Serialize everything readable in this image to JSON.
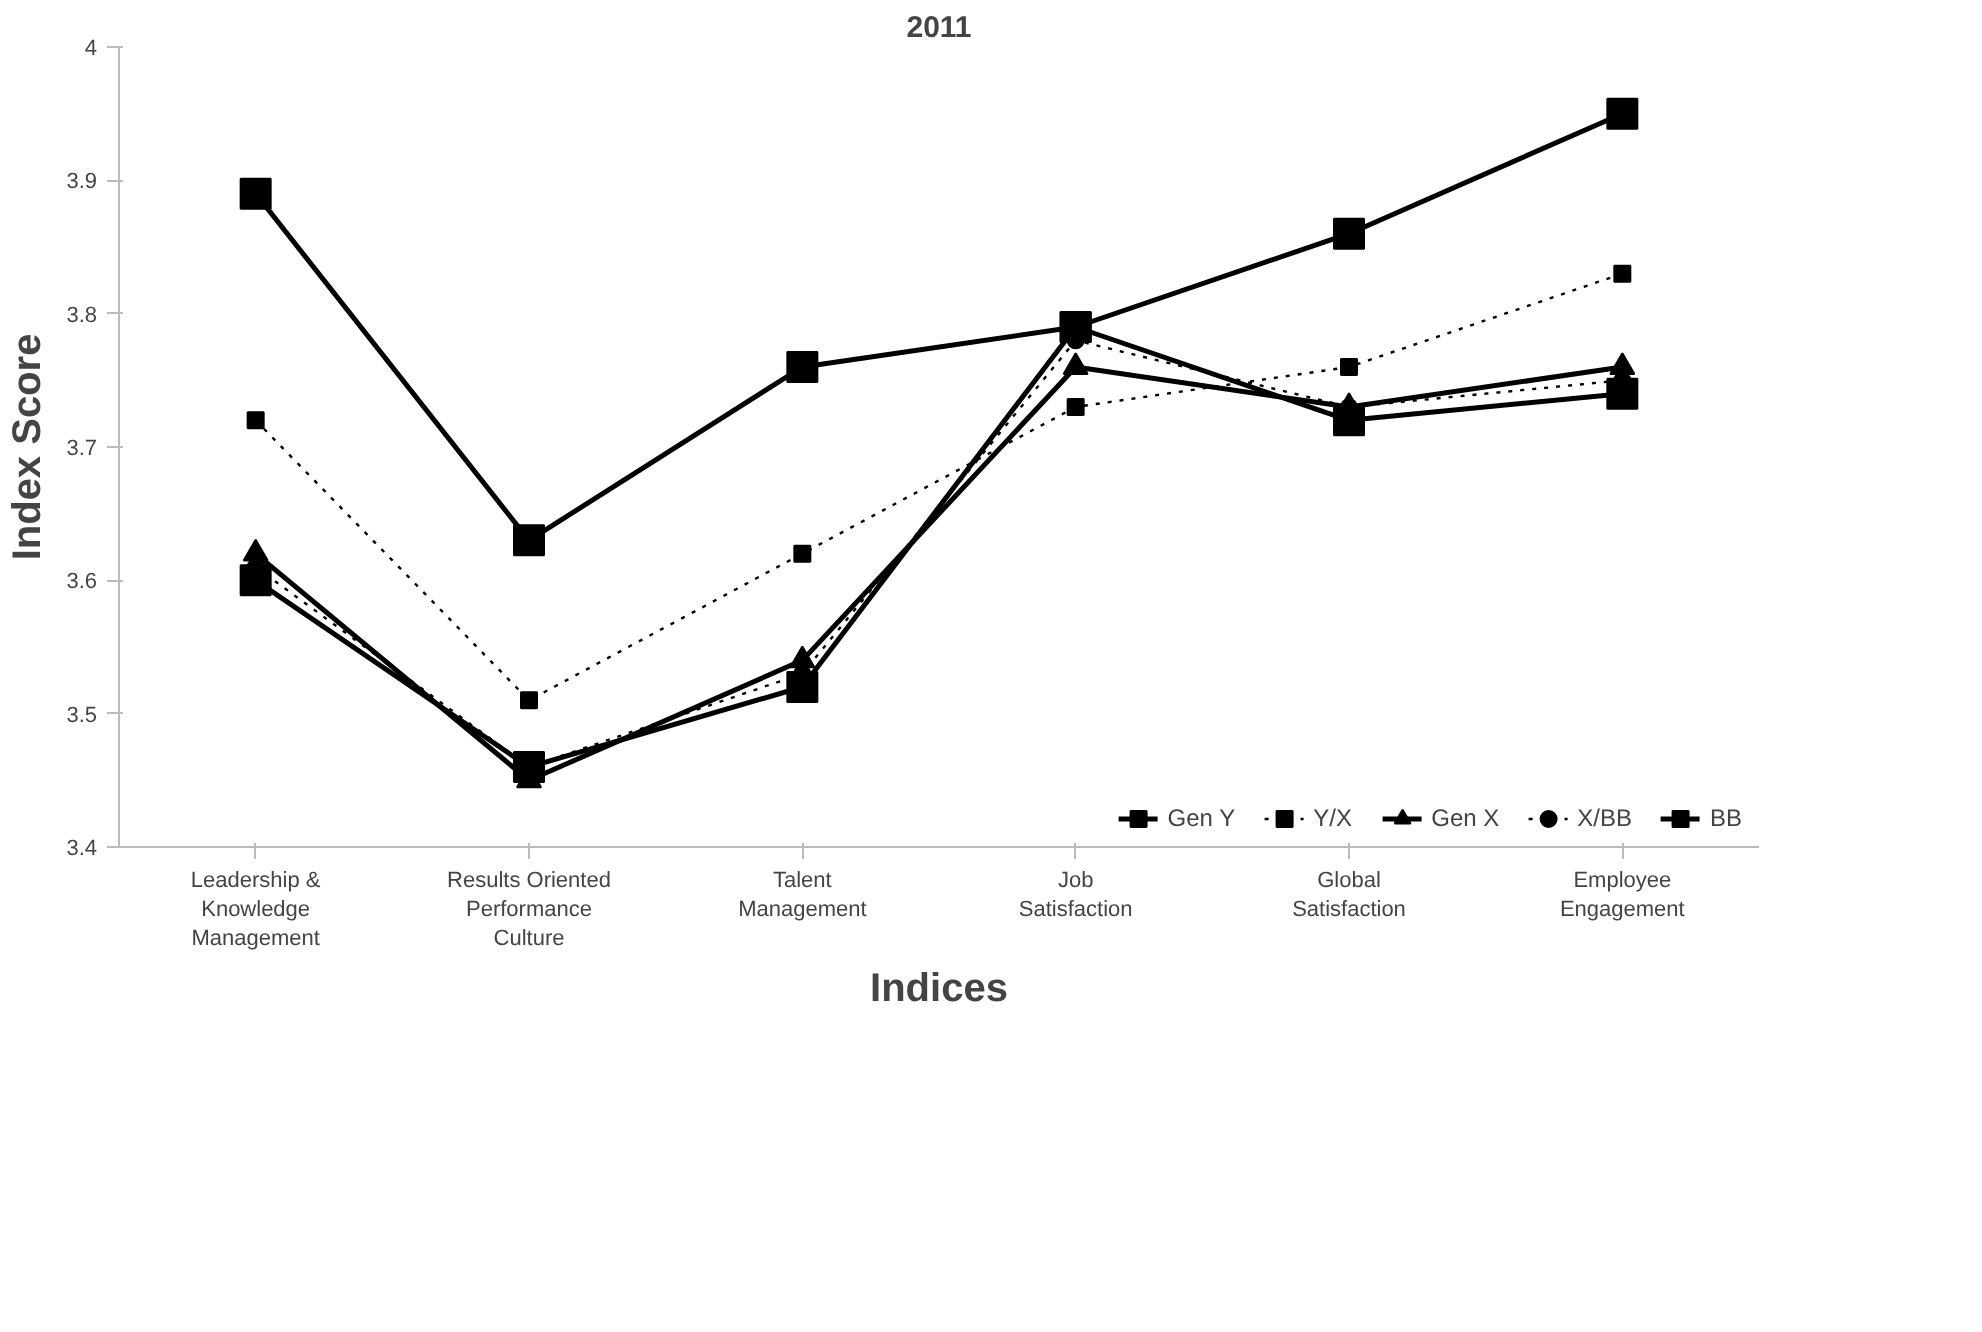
{
  "chart_data": {
    "type": "line",
    "title": "2011",
    "xlabel": "Indices",
    "ylabel": "Index Score",
    "categories": [
      "Leadership &\nKnowledge\nManagement",
      "Results Oriented\nPerformance\nCulture",
      "Talent\nManagement",
      "Job\nSatisfaction",
      "Global\nSatisfaction",
      "Employee\nEngagement"
    ],
    "ylim": [
      3.4,
      4
    ],
    "yticks": [
      3.4,
      3.5,
      3.6,
      3.7,
      3.8,
      3.9,
      4
    ],
    "grid": false,
    "legend": "bottom right",
    "series": [
      {
        "name": "Gen Y",
        "color": "#000000",
        "marker": "square",
        "line_style": "solid",
        "values": [
          3.6,
          3.46,
          3.52,
          3.79,
          3.72,
          3.74
        ]
      },
      {
        "name": "Y/X",
        "color": "#000000",
        "marker": "square",
        "line_style": "dotted",
        "values": [
          3.72,
          3.51,
          3.62,
          3.73,
          3.76,
          3.83
        ]
      },
      {
        "name": "Gen X",
        "color": "#000000",
        "marker": "triangle",
        "line_style": "solid",
        "values": [
          3.62,
          3.45,
          3.54,
          3.76,
          3.73,
          3.76
        ]
      },
      {
        "name": "X/BB",
        "color": "#000000",
        "marker": "circle",
        "line_style": "dotted",
        "values": [
          3.61,
          3.46,
          3.53,
          3.78,
          3.73,
          3.75
        ]
      },
      {
        "name": "BB",
        "color": "#000000",
        "marker": "square",
        "line_style": "solid",
        "values": [
          3.89,
          3.63,
          3.76,
          3.79,
          3.86,
          3.95
        ]
      }
    ]
  }
}
